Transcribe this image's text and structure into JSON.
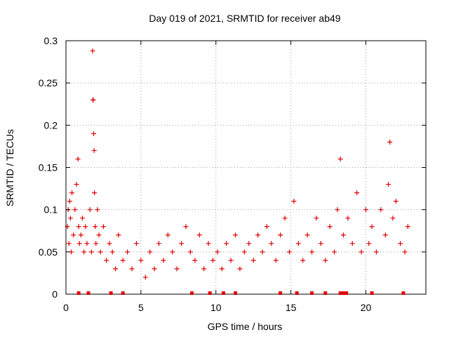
{
  "chart_data": {
    "type": "scatter",
    "title": "Day 019 of 2021, SRMTID for receiver ab49",
    "xlabel": "GPS time / hours",
    "ylabel": "SRMTID / TECUs",
    "xlim": [
      0,
      24
    ],
    "ylim": [
      0,
      0.3
    ],
    "xticks": [
      0,
      5,
      10,
      15,
      20
    ],
    "xtick_labels": [
      "0",
      "5",
      "10",
      "15",
      "20"
    ],
    "yticks": [
      0,
      0.05,
      0.1,
      0.15,
      0.2,
      0.25,
      0.3
    ],
    "ytick_labels": [
      "0",
      "0.05",
      "0.1",
      "0.15",
      "0.2",
      "0.25",
      "0.3"
    ],
    "grid": true,
    "marker": "plus",
    "color": "#e00000",
    "series": [
      {
        "name": "SRMTID",
        "x": [
          0.1,
          0.15,
          0.2,
          0.25,
          0.3,
          0.35,
          0.4,
          0.5,
          0.6,
          0.7,
          0.8,
          0.85,
          0.9,
          1.0,
          1.1,
          1.2,
          1.3,
          1.4,
          1.6,
          1.7,
          1.78,
          1.8,
          1.82,
          1.85,
          1.88,
          1.9,
          1.95,
          2.0,
          2.1,
          2.2,
          2.3,
          2.5,
          2.7,
          2.9,
          3.1,
          3.3,
          3.5,
          3.8,
          4.1,
          4.4,
          4.7,
          5.0,
          5.3,
          5.6,
          5.9,
          6.2,
          6.5,
          6.8,
          7.1,
          7.4,
          7.7,
          8.0,
          8.3,
          8.6,
          8.9,
          9.2,
          9.5,
          9.8,
          10.1,
          10.4,
          10.7,
          11.0,
          11.3,
          11.6,
          11.9,
          12.2,
          12.5,
          12.8,
          13.1,
          13.4,
          13.7,
          14.0,
          14.3,
          14.6,
          14.9,
          15.2,
          15.5,
          15.8,
          16.1,
          16.4,
          16.7,
          17.0,
          17.3,
          17.6,
          17.9,
          18.1,
          18.3,
          18.5,
          18.8,
          19.1,
          19.4,
          19.7,
          20.0,
          20.2,
          20.4,
          20.7,
          21.0,
          21.3,
          21.5,
          21.6,
          21.8,
          22.0,
          22.3,
          22.6,
          22.8
        ],
        "y": [
          0.08,
          0.1,
          0.06,
          0.11,
          0.09,
          0.05,
          0.12,
          0.07,
          0.1,
          0.13,
          0.16,
          0.08,
          0.06,
          0.07,
          0.09,
          0.05,
          0.08,
          0.06,
          0.1,
          0.05,
          0.288,
          0.23,
          0.23,
          0.19,
          0.17,
          0.12,
          0.08,
          0.06,
          0.1,
          0.07,
          0.05,
          0.08,
          0.04,
          0.06,
          0.05,
          0.03,
          0.07,
          0.04,
          0.05,
          0.03,
          0.06,
          0.04,
          0.02,
          0.05,
          0.03,
          0.06,
          0.04,
          0.07,
          0.05,
          0.03,
          0.06,
          0.08,
          0.05,
          0.04,
          0.07,
          0.03,
          0.06,
          0.04,
          0.05,
          0.03,
          0.06,
          0.04,
          0.07,
          0.03,
          0.05,
          0.06,
          0.04,
          0.07,
          0.05,
          0.08,
          0.06,
          0.04,
          0.07,
          0.09,
          0.05,
          0.11,
          0.06,
          0.04,
          0.07,
          0.05,
          0.09,
          0.06,
          0.04,
          0.08,
          0.05,
          0.1,
          0.16,
          0.07,
          0.09,
          0.06,
          0.12,
          0.05,
          0.1,
          0.06,
          0.08,
          0.05,
          0.1,
          0.07,
          0.13,
          0.18,
          0.09,
          0.11,
          0.06,
          0.05,
          0.08
        ]
      }
    ],
    "bottom_markers_x": [
      0.85,
      1.5,
      3.0,
      3.8,
      8.4,
      9.6,
      10.5,
      11.3,
      14.3,
      15.4,
      16.4,
      17.3,
      18.3,
      18.5,
      18.7,
      20.4,
      22.5
    ]
  }
}
